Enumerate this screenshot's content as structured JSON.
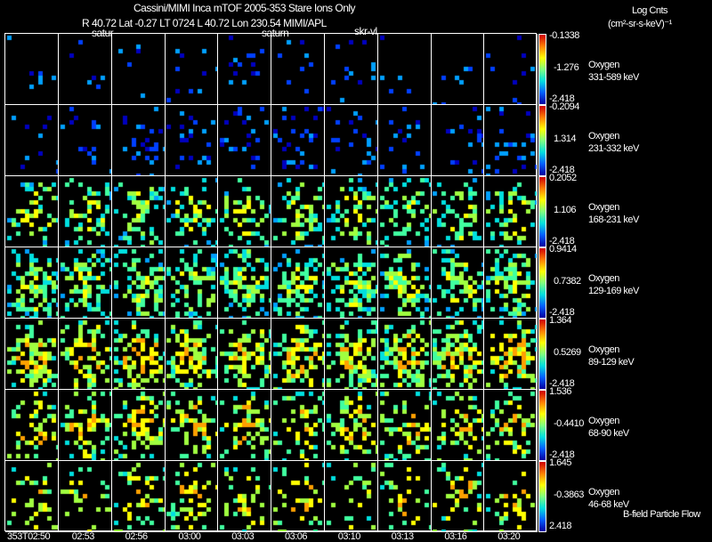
{
  "header": {
    "title": "Cassini/MIMI Inca mTOF  2005-353   Stare   Ions Only",
    "line2": "R        40.72 Lat -0.27 LT 0724 L          40.72 Lon         230.54  MIMI/APL",
    "units_top": "Log Cnts",
    "units_bottom": "(cm²-sr-s-keV)⁻¹",
    "labels": [
      "satur",
      "saturn",
      "skr-vl"
    ]
  },
  "chart_data": {
    "type": "heatmap",
    "title": "Cassini/MIMI Inca mTOF 2005-353 Stare Ions Only",
    "times": [
      "353T02:50",
      "02:53",
      "02:56",
      "03:00",
      "03:03",
      "03:06",
      "03:10",
      "03:13",
      "03:16",
      "03:20"
    ],
    "rows": [
      {
        "species": "Oxygen",
        "energy": "331-589 keV",
        "max": "-0.1338",
        "mid": "-1.276",
        "min": "-2.418",
        "density": 0.04
      },
      {
        "species": "Oxygen",
        "energy": "231-332 keV",
        "max": "-0.2094",
        "mid": "1.314",
        "min": "-2.418",
        "density": 0.1
      },
      {
        "species": "Oxygen",
        "energy": "168-231 keV",
        "max": "0.2052",
        "mid": "1.106",
        "min": "-2.418",
        "density": 0.3
      },
      {
        "species": "Oxygen",
        "energy": "129-169 keV",
        "max": "0.9414",
        "mid": "0.7382",
        "min": "-2.418",
        "density": 0.4
      },
      {
        "species": "Oxygen",
        "energy": "89-129 keV",
        "max": "1.364",
        "mid": "0.5269",
        "min": "-2.418",
        "density": 0.42
      },
      {
        "species": "Oxygen",
        "energy": "68-90 keV",
        "max": "1.536",
        "mid": "-0.4410",
        "min": "-2.418",
        "density": 0.3
      },
      {
        "species": "Oxygen",
        "energy": "46-68 keV",
        "max": "1.645",
        "mid": "-0.3863",
        "min": "2.418",
        "density": 0.2
      }
    ]
  },
  "footer": {
    "legend": "B-field Particle Flow"
  }
}
